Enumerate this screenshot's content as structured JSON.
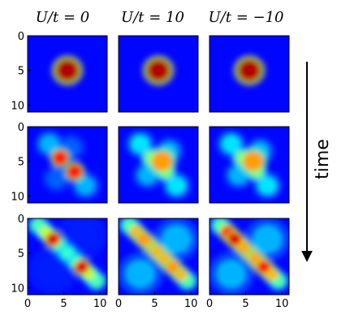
{
  "chart_data": {
    "type": "heatmap",
    "colormap": "jet",
    "column_titles": [
      "U/t = 0",
      "U/t = 10",
      "U/t = −10"
    ],
    "row_axis_label": "time",
    "xticks": [
      "0",
      "5",
      "10"
    ],
    "yticks": [
      "0",
      "5",
      "10"
    ],
    "xlim": [
      0,
      11
    ],
    "ylim": [
      0,
      11
    ],
    "x_tick_positions": [
      0,
      5,
      10
    ],
    "y_tick_positions": [
      0,
      5,
      10
    ],
    "panels": [
      {
        "row": 0,
        "col": 0,
        "spots": [
          {
            "x": 5.5,
            "y": 5,
            "value": 0.95,
            "spread": 0.8
          }
        ]
      },
      {
        "row": 0,
        "col": 1,
        "spots": [
          {
            "x": 5.5,
            "y": 5,
            "value": 0.95,
            "spread": 0.8
          }
        ]
      },
      {
        "row": 0,
        "col": 2,
        "spots": [
          {
            "x": 5.5,
            "y": 5,
            "value": 0.95,
            "spread": 0.8
          }
        ]
      },
      {
        "row": 1,
        "col": 0,
        "spots": [
          {
            "x": 4.5,
            "y": 4.5,
            "value": 0.85,
            "spread": 0.55
          },
          {
            "x": 6.5,
            "y": 6.5,
            "value": 0.85,
            "spread": 0.55
          },
          {
            "x": 3,
            "y": 2.5,
            "value": 0.3,
            "spread": 0.7
          },
          {
            "x": 8,
            "y": 8.5,
            "value": 0.3,
            "spread": 0.7
          },
          {
            "x": 6,
            "y": 3,
            "value": 0.22,
            "spread": 0.7
          },
          {
            "x": 4,
            "y": 7.5,
            "value": 0.22,
            "spread": 0.7
          }
        ]
      },
      {
        "row": 1,
        "col": 1,
        "spots": [
          {
            "x": 6,
            "y": 5,
            "value": 0.72,
            "spread": 0.75
          },
          {
            "x": 4.5,
            "y": 4.5,
            "value": 0.5,
            "spread": 0.55
          },
          {
            "x": 6.5,
            "y": 6.5,
            "value": 0.5,
            "spread": 0.55
          },
          {
            "x": 3,
            "y": 2.5,
            "value": 0.35,
            "spread": 0.7
          },
          {
            "x": 8,
            "y": 8.5,
            "value": 0.35,
            "spread": 0.7
          },
          {
            "x": 7,
            "y": 3.5,
            "value": 0.3,
            "spread": 0.7
          },
          {
            "x": 4,
            "y": 7,
            "value": 0.3,
            "spread": 0.7
          }
        ]
      },
      {
        "row": 1,
        "col": 2,
        "spots": [
          {
            "x": 6,
            "y": 5,
            "value": 0.72,
            "spread": 0.75
          },
          {
            "x": 4.5,
            "y": 4.5,
            "value": 0.5,
            "spread": 0.55
          },
          {
            "x": 6.5,
            "y": 6.5,
            "value": 0.5,
            "spread": 0.55
          },
          {
            "x": 3,
            "y": 2.5,
            "value": 0.35,
            "spread": 0.7
          },
          {
            "x": 8,
            "y": 8.5,
            "value": 0.35,
            "spread": 0.7
          },
          {
            "x": 7,
            "y": 3.5,
            "value": 0.3,
            "spread": 0.7
          },
          {
            "x": 4,
            "y": 7,
            "value": 0.3,
            "spread": 0.7
          }
        ]
      },
      {
        "row": 2,
        "col": 0,
        "spots": [
          {
            "x": 1.5,
            "y": 1,
            "value": 0.45,
            "spread": 0.55
          },
          {
            "x": 2.5,
            "y": 2,
            "value": 0.55,
            "spread": 0.5
          },
          {
            "x": 3.5,
            "y": 3,
            "value": 0.9,
            "spread": 0.5
          },
          {
            "x": 4.5,
            "y": 4,
            "value": 0.4,
            "spread": 0.5
          },
          {
            "x": 5.5,
            "y": 5,
            "value": 0.42,
            "spread": 0.5
          },
          {
            "x": 6.5,
            "y": 6,
            "value": 0.4,
            "spread": 0.5
          },
          {
            "x": 7.5,
            "y": 7,
            "value": 0.9,
            "spread": 0.5
          },
          {
            "x": 8.5,
            "y": 8,
            "value": 0.55,
            "spread": 0.5
          },
          {
            "x": 9.5,
            "y": 9,
            "value": 0.45,
            "spread": 0.55
          },
          {
            "x": 7.5,
            "y": 2.5,
            "value": 0.15,
            "spread": 1.2
          },
          {
            "x": 3.5,
            "y": 7.5,
            "value": 0.15,
            "spread": 1.2
          }
        ]
      },
      {
        "row": 2,
        "col": 1,
        "spots": [
          {
            "x": 1.5,
            "y": 1,
            "value": 0.45,
            "spread": 0.55
          },
          {
            "x": 2.5,
            "y": 2,
            "value": 0.7,
            "spread": 0.5
          },
          {
            "x": 3.5,
            "y": 3,
            "value": 0.72,
            "spread": 0.5
          },
          {
            "x": 4.5,
            "y": 4,
            "value": 0.7,
            "spread": 0.5
          },
          {
            "x": 5.5,
            "y": 5,
            "value": 0.7,
            "spread": 0.5
          },
          {
            "x": 6.5,
            "y": 6,
            "value": 0.7,
            "spread": 0.5
          },
          {
            "x": 7.5,
            "y": 7,
            "value": 0.72,
            "spread": 0.5
          },
          {
            "x": 8.5,
            "y": 8,
            "value": 0.7,
            "spread": 0.5
          },
          {
            "x": 9.5,
            "y": 9,
            "value": 0.45,
            "spread": 0.55
          },
          {
            "x": 8,
            "y": 3,
            "value": 0.3,
            "spread": 1.1
          },
          {
            "x": 3,
            "y": 8,
            "value": 0.3,
            "spread": 1.1
          }
        ]
      },
      {
        "row": 2,
        "col": 2,
        "spots": [
          {
            "x": 1.5,
            "y": 1,
            "value": 0.45,
            "spread": 0.55
          },
          {
            "x": 2.5,
            "y": 2,
            "value": 0.85,
            "spread": 0.5
          },
          {
            "x": 3.5,
            "y": 3,
            "value": 0.9,
            "spread": 0.5
          },
          {
            "x": 4.5,
            "y": 4,
            "value": 0.72,
            "spread": 0.5
          },
          {
            "x": 5.5,
            "y": 5,
            "value": 0.7,
            "spread": 0.5
          },
          {
            "x": 6.5,
            "y": 6,
            "value": 0.72,
            "spread": 0.5
          },
          {
            "x": 7.5,
            "y": 7,
            "value": 0.85,
            "spread": 0.5
          },
          {
            "x": 8.5,
            "y": 8,
            "value": 0.7,
            "spread": 0.5
          },
          {
            "x": 9.5,
            "y": 9,
            "value": 0.45,
            "spread": 0.55
          },
          {
            "x": 8,
            "y": 3,
            "value": 0.3,
            "spread": 1.1
          },
          {
            "x": 3,
            "y": 8,
            "value": 0.3,
            "spread": 1.1
          }
        ]
      }
    ]
  }
}
